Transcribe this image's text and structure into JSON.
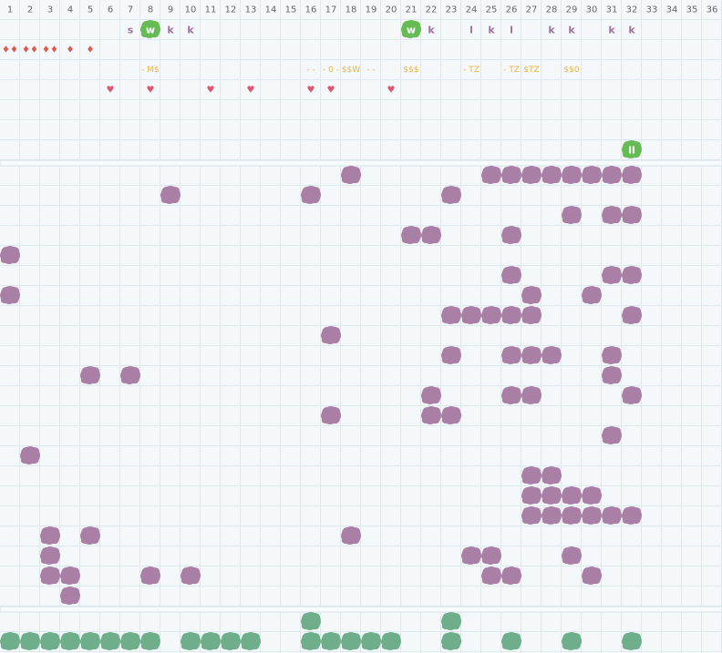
{
  "columns": [
    1,
    2,
    3,
    4,
    5,
    6,
    7,
    8,
    9,
    10,
    11,
    12,
    13,
    14,
    15,
    16,
    17,
    18,
    19,
    20,
    21,
    22,
    23,
    24,
    25,
    26,
    27,
    28,
    29,
    30,
    31,
    32,
    33,
    34,
    35,
    36
  ],
  "top_rows": [
    [
      {
        "col": 7,
        "text": "s",
        "style": "letter"
      },
      {
        "col": 8,
        "text": "w",
        "style": "badge"
      },
      {
        "col": 9,
        "text": "k",
        "style": "letter"
      },
      {
        "col": 10,
        "text": "k",
        "style": "letter"
      },
      {
        "col": 21,
        "text": "w",
        "style": "badge"
      },
      {
        "col": 22,
        "text": "k",
        "style": "letter"
      },
      {
        "col": 24,
        "text": "l",
        "style": "letter"
      },
      {
        "col": 25,
        "text": "k",
        "style": "letter"
      },
      {
        "col": 26,
        "text": "l",
        "style": "letter"
      },
      {
        "col": 28,
        "text": "k",
        "style": "letter"
      },
      {
        "col": 29,
        "text": "k",
        "style": "letter"
      },
      {
        "col": 31,
        "text": "k",
        "style": "letter"
      },
      {
        "col": 32,
        "text": "k",
        "style": "letter"
      }
    ],
    [
      {
        "col": 1,
        "text": "♦♦",
        "style": "drop"
      },
      {
        "col": 2,
        "text": "♦♦",
        "style": "drop"
      },
      {
        "col": 3,
        "text": "♦♦",
        "style": "drop"
      },
      {
        "col": 4,
        "text": "♦",
        "style": "drop"
      },
      {
        "col": 5,
        "text": "♦",
        "style": "drop"
      }
    ],
    [
      {
        "col": 8,
        "text": "- M$",
        "style": "money"
      },
      {
        "col": 16,
        "text": "- -",
        "style": "money"
      },
      {
        "col": 17,
        "text": "- 0 -",
        "style": "money"
      },
      {
        "col": 18,
        "text": "$$W",
        "style": "money"
      },
      {
        "col": 19,
        "text": "- -",
        "style": "money"
      },
      {
        "col": 21,
        "text": "$$$",
        "style": "money"
      },
      {
        "col": 24,
        "text": "- TZ",
        "style": "money"
      },
      {
        "col": 26,
        "text": "- TZ",
        "style": "money"
      },
      {
        "col": 27,
        "text": "$TZ",
        "style": "money"
      },
      {
        "col": 29,
        "text": "$$0",
        "style": "money"
      }
    ],
    [
      {
        "col": 6,
        "text": "♥",
        "style": "heart"
      },
      {
        "col": 8,
        "text": "♥",
        "style": "heart"
      },
      {
        "col": 11,
        "text": "♥",
        "style": "heart"
      },
      {
        "col": 13,
        "text": "♥",
        "style": "heart"
      },
      {
        "col": 16,
        "text": "♥",
        "style": "heart"
      },
      {
        "col": 17,
        "text": "♥",
        "style": "heart"
      },
      {
        "col": 20,
        "text": "♥",
        "style": "heart"
      }
    ],
    [],
    [],
    [
      {
        "col": 32,
        "text": "ll",
        "style": "badge"
      }
    ]
  ],
  "grid_rows": [
    [
      18,
      25,
      26,
      27,
      28,
      29,
      30,
      31,
      32
    ],
    [
      9,
      16,
      23
    ],
    [
      29,
      31,
      32
    ],
    [
      21,
      22,
      26
    ],
    [
      1
    ],
    [
      26,
      31,
      32
    ],
    [
      1,
      27,
      30
    ],
    [
      23,
      24,
      25,
      26,
      27,
      32
    ],
    [
      17
    ],
    [
      23,
      26,
      27,
      28,
      31
    ],
    [
      5,
      7,
      31
    ],
    [
      22,
      26,
      27,
      32
    ],
    [
      17,
      22,
      23
    ],
    [
      31
    ],
    [
      2
    ],
    [
      27,
      28
    ],
    [
      27,
      28,
      29,
      30
    ],
    [
      27,
      28,
      29,
      30,
      31,
      32
    ],
    [
      3,
      5,
      18
    ],
    [
      3,
      24,
      25,
      29
    ],
    [
      3,
      4,
      8,
      10,
      25,
      26,
      30
    ],
    [
      4
    ]
  ],
  "bottom_rows": [
    [
      16,
      23
    ],
    [
      1,
      2,
      3,
      4,
      5,
      6,
      7,
      8,
      10,
      11,
      12,
      13,
      16,
      17,
      18,
      19,
      20,
      23,
      26,
      29,
      32
    ]
  ]
}
